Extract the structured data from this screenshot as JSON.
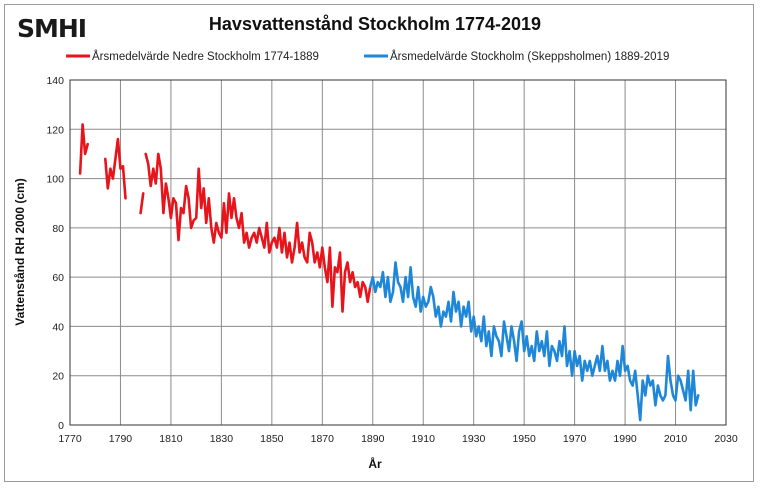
{
  "chart_data": {
    "type": "line",
    "logo": "SMHI",
    "title": "Havsvattenstånd  Stockholm 1774-2019",
    "xlabel": "År",
    "ylabel": "Vattenstånd RH 2000 (cm)",
    "xlim": [
      1770,
      2030
    ],
    "ylim": [
      0,
      140
    ],
    "xticks": [
      1770,
      1790,
      1810,
      1830,
      1850,
      1870,
      1890,
      1910,
      1930,
      1950,
      1970,
      1990,
      2010,
      2030
    ],
    "yticks": [
      0,
      20,
      40,
      60,
      80,
      100,
      120,
      140
    ],
    "grid": true,
    "legend_position": "top",
    "series": [
      {
        "name": "Årsmedelvärde Nedre Stockholm 1774-1889",
        "color": "#e8141b",
        "segments": [
          [
            [
              1774,
              102
            ],
            [
              1775,
              122
            ],
            [
              1776,
              110
            ],
            [
              1777,
              114
            ]
          ],
          [
            [
              1784,
              108
            ],
            [
              1785,
              96
            ],
            [
              1786,
              104
            ],
            [
              1787,
              100
            ],
            [
              1788,
              108
            ],
            [
              1789,
              116
            ],
            [
              1790,
              104
            ],
            [
              1791,
              105
            ],
            [
              1792,
              92
            ]
          ],
          [
            [
              1798,
              86
            ],
            [
              1799,
              94
            ]
          ],
          [
            [
              1800,
              110
            ],
            [
              1801,
              106
            ],
            [
              1802,
              97
            ],
            [
              1803,
              104
            ],
            [
              1804,
              98
            ],
            [
              1805,
              110
            ],
            [
              1806,
              104
            ],
            [
              1807,
              86
            ],
            [
              1808,
              98
            ],
            [
              1809,
              92
            ],
            [
              1810,
              84
            ],
            [
              1811,
              92
            ],
            [
              1812,
              90
            ],
            [
              1813,
              75
            ],
            [
              1814,
              88
            ],
            [
              1815,
              86
            ],
            [
              1816,
              97
            ],
            [
              1817,
              92
            ],
            [
              1818,
              80
            ],
            [
              1819,
              83
            ],
            [
              1820,
              84
            ],
            [
              1821,
              104
            ],
            [
              1822,
              88
            ],
            [
              1823,
              96
            ],
            [
              1824,
              82
            ],
            [
              1825,
              92
            ],
            [
              1826,
              80
            ],
            [
              1827,
              74
            ],
            [
              1828,
              82
            ],
            [
              1829,
              78
            ],
            [
              1830,
              76
            ],
            [
              1831,
              90
            ],
            [
              1832,
              78
            ],
            [
              1833,
              94
            ],
            [
              1834,
              84
            ],
            [
              1835,
              92
            ],
            [
              1836,
              84
            ],
            [
              1837,
              80
            ],
            [
              1838,
              86
            ],
            [
              1839,
              74
            ],
            [
              1840,
              78
            ],
            [
              1841,
              72
            ],
            [
              1842,
              76
            ],
            [
              1843,
              78
            ],
            [
              1844,
              74
            ],
            [
              1845,
              80
            ],
            [
              1846,
              76
            ],
            [
              1847,
              72
            ],
            [
              1848,
              82
            ],
            [
              1849,
              70
            ],
            [
              1850,
              74
            ],
            [
              1851,
              76
            ],
            [
              1852,
              72
            ],
            [
              1853,
              80
            ],
            [
              1854,
              70
            ],
            [
              1855,
              78
            ],
            [
              1856,
              68
            ],
            [
              1857,
              74
            ],
            [
              1858,
              66
            ],
            [
              1859,
              72
            ],
            [
              1860,
              82
            ],
            [
              1861,
              70
            ],
            [
              1862,
              74
            ],
            [
              1863,
              68
            ],
            [
              1864,
              66
            ],
            [
              1865,
              78
            ],
            [
              1866,
              74
            ],
            [
              1867,
              66
            ],
            [
              1868,
              70
            ],
            [
              1869,
              64
            ],
            [
              1870,
              72
            ],
            [
              1871,
              64
            ],
            [
              1872,
              58
            ],
            [
              1873,
              72
            ],
            [
              1874,
              48
            ],
            [
              1875,
              64
            ],
            [
              1876,
              62
            ],
            [
              1877,
              70
            ],
            [
              1878,
              46
            ],
            [
              1879,
              62
            ],
            [
              1880,
              66
            ],
            [
              1881,
              58
            ],
            [
              1882,
              62
            ],
            [
              1883,
              56
            ],
            [
              1884,
              58
            ],
            [
              1885,
              52
            ],
            [
              1886,
              58
            ],
            [
              1887,
              56
            ],
            [
              1888,
              50
            ],
            [
              1889,
              56
            ]
          ]
        ]
      },
      {
        "name": "Årsmedelvärde Stockholm (Skeppsholmen) 1889-2019",
        "color": "#1f87d8",
        "segments": [
          [
            [
              1889,
              56
            ],
            [
              1890,
              60
            ],
            [
              1891,
              54
            ],
            [
              1892,
              58
            ],
            [
              1893,
              56
            ],
            [
              1894,
              62
            ],
            [
              1895,
              52
            ],
            [
              1896,
              60
            ],
            [
              1897,
              50
            ],
            [
              1898,
              54
            ],
            [
              1899,
              66
            ],
            [
              1900,
              58
            ],
            [
              1901,
              56
            ],
            [
              1902,
              50
            ],
            [
              1903,
              60
            ],
            [
              1904,
              52
            ],
            [
              1905,
              64
            ],
            [
              1906,
              52
            ],
            [
              1907,
              48
            ],
            [
              1908,
              56
            ],
            [
              1909,
              46
            ],
            [
              1910,
              52
            ],
            [
              1911,
              48
            ],
            [
              1912,
              50
            ],
            [
              1913,
              56
            ],
            [
              1914,
              52
            ],
            [
              1915,
              44
            ],
            [
              1916,
              48
            ],
            [
              1917,
              40
            ],
            [
              1918,
              46
            ],
            [
              1919,
              44
            ],
            [
              1920,
              50
            ],
            [
              1921,
              42
            ],
            [
              1922,
              54
            ],
            [
              1923,
              46
            ],
            [
              1924,
              50
            ],
            [
              1925,
              40
            ],
            [
              1926,
              48
            ],
            [
              1927,
              44
            ],
            [
              1928,
              50
            ],
            [
              1929,
              38
            ],
            [
              1930,
              44
            ],
            [
              1931,
              36
            ],
            [
              1932,
              40
            ],
            [
              1933,
              34
            ],
            [
              1934,
              44
            ],
            [
              1935,
              32
            ],
            [
              1936,
              38
            ],
            [
              1937,
              28
            ],
            [
              1938,
              40
            ],
            [
              1939,
              36
            ],
            [
              1940,
              34
            ],
            [
              1941,
              28
            ],
            [
              1942,
              42
            ],
            [
              1943,
              36
            ],
            [
              1944,
              30
            ],
            [
              1945,
              40
            ],
            [
              1946,
              34
            ],
            [
              1947,
              26
            ],
            [
              1948,
              38
            ],
            [
              1949,
              42
            ],
            [
              1950,
              30
            ],
            [
              1951,
              36
            ],
            [
              1952,
              28
            ],
            [
              1953,
              32
            ],
            [
              1954,
              26
            ],
            [
              1955,
              38
            ],
            [
              1956,
              30
            ],
            [
              1957,
              34
            ],
            [
              1958,
              28
            ],
            [
              1959,
              38
            ],
            [
              1960,
              24
            ],
            [
              1961,
              32
            ],
            [
              1962,
              30
            ],
            [
              1963,
              26
            ],
            [
              1964,
              34
            ],
            [
              1965,
              28
            ],
            [
              1966,
              40
            ],
            [
              1967,
              24
            ],
            [
              1968,
              30
            ],
            [
              1969,
              20
            ],
            [
              1970,
              30
            ],
            [
              1971,
              24
            ],
            [
              1972,
              28
            ],
            [
              1973,
              18
            ],
            [
              1974,
              26
            ],
            [
              1975,
              22
            ],
            [
              1976,
              26
            ],
            [
              1977,
              20
            ],
            [
              1978,
              24
            ],
            [
              1979,
              28
            ],
            [
              1980,
              22
            ],
            [
              1981,
              32
            ],
            [
              1982,
              22
            ],
            [
              1983,
              26
            ],
            [
              1984,
              18
            ],
            [
              1985,
              22
            ],
            [
              1986,
              18
            ],
            [
              1987,
              26
            ],
            [
              1988,
              20
            ],
            [
              1989,
              32
            ],
            [
              1990,
              22
            ],
            [
              1991,
              24
            ],
            [
              1992,
              18
            ],
            [
              1993,
              16
            ],
            [
              1994,
              22
            ],
            [
              1995,
              12
            ],
            [
              1996,
              2
            ],
            [
              1997,
              18
            ],
            [
              1998,
              12
            ],
            [
              1999,
              20
            ],
            [
              2000,
              16
            ],
            [
              2001,
              18
            ],
            [
              2002,
              8
            ],
            [
              2003,
              16
            ],
            [
              2004,
              12
            ],
            [
              2005,
              10
            ],
            [
              2006,
              12
            ],
            [
              2007,
              28
            ],
            [
              2008,
              18
            ],
            [
              2009,
              12
            ],
            [
              2010,
              10
            ],
            [
              2011,
              20
            ],
            [
              2012,
              18
            ],
            [
              2013,
              14
            ],
            [
              2014,
              10
            ],
            [
              2015,
              22
            ],
            [
              2016,
              6
            ],
            [
              2017,
              22
            ],
            [
              2018,
              8
            ],
            [
              2019,
              12
            ]
          ]
        ]
      }
    ]
  }
}
